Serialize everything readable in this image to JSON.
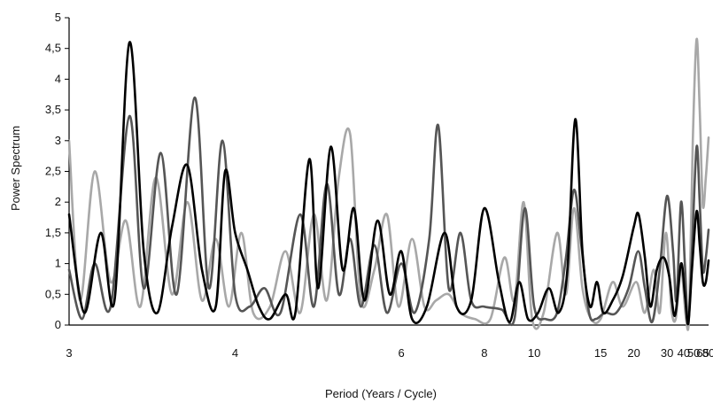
{
  "chart_data": {
    "type": "line",
    "title": "",
    "xlabel": "Period (Years / Cycle)",
    "ylabel": "Power Spectrum",
    "ylim": [
      0,
      5
    ],
    "xlim": [
      3,
      80
    ],
    "x_scale": "reciprocal",
    "yticks": [
      {
        "value": 0,
        "label": "0"
      },
      {
        "value": 0.5,
        "label": "0,5"
      },
      {
        "value": 1,
        "label": "1"
      },
      {
        "value": 1.5,
        "label": "1,5"
      },
      {
        "value": 2,
        "label": "2"
      },
      {
        "value": 2.5,
        "label": "2,5"
      },
      {
        "value": 3,
        "label": "3"
      },
      {
        "value": 3.5,
        "label": "3,5"
      },
      {
        "value": 4,
        "label": "4"
      },
      {
        "value": 4.5,
        "label": "4,5"
      },
      {
        "value": 5,
        "label": "5"
      }
    ],
    "xticks": [
      {
        "value": 3,
        "label": "3"
      },
      {
        "value": 4,
        "label": "4"
      },
      {
        "value": 6,
        "label": "6"
      },
      {
        "value": 8,
        "label": "8"
      },
      {
        "value": 10,
        "label": "10"
      },
      {
        "value": 15,
        "label": "15"
      },
      {
        "value": 20,
        "label": "20"
      },
      {
        "value": 30,
        "label": "30"
      },
      {
        "value": 40,
        "label": "40"
      },
      {
        "value": 50,
        "label": "50"
      },
      {
        "value": 65,
        "label": "65"
      },
      {
        "value": 80,
        "label": "80"
      }
    ],
    "grid": false,
    "legend": "none",
    "series": [
      {
        "color": "#000000",
        "points": [
          [
            3.0,
            1.8
          ],
          [
            3.07,
            0.2
          ],
          [
            3.15,
            1.5
          ],
          [
            3.22,
            0.4
          ],
          [
            3.3,
            4.6
          ],
          [
            3.38,
            1.2
          ],
          [
            3.46,
            0.2
          ],
          [
            3.55,
            1.6
          ],
          [
            3.65,
            2.6
          ],
          [
            3.75,
            0.9
          ],
          [
            3.85,
            0.3
          ],
          [
            3.92,
            2.5
          ],
          [
            4.0,
            1.5
          ],
          [
            4.1,
            0.9
          ],
          [
            4.2,
            0.3
          ],
          [
            4.3,
            0.1
          ],
          [
            4.45,
            0.5
          ],
          [
            4.55,
            0.2
          ],
          [
            4.7,
            2.7
          ],
          [
            4.8,
            0.6
          ],
          [
            4.95,
            2.9
          ],
          [
            5.1,
            0.9
          ],
          [
            5.25,
            1.9
          ],
          [
            5.4,
            0.4
          ],
          [
            5.6,
            1.7
          ],
          [
            5.8,
            0.5
          ],
          [
            6.0,
            1.2
          ],
          [
            6.2,
            0.1
          ],
          [
            6.5,
            0.3
          ],
          [
            6.9,
            1.5
          ],
          [
            7.2,
            0.3
          ],
          [
            7.6,
            0.4
          ],
          [
            8.0,
            1.9
          ],
          [
            8.5,
            0.7
          ],
          [
            8.9,
            0.05
          ],
          [
            9.3,
            0.7
          ],
          [
            9.7,
            0.1
          ],
          [
            10.2,
            0.2
          ],
          [
            10.8,
            0.6
          ],
          [
            11.4,
            0.2
          ],
          [
            12.0,
            0.9
          ],
          [
            12.6,
            3.35
          ],
          [
            13.2,
            1.2
          ],
          [
            13.9,
            0.3
          ],
          [
            14.6,
            0.7
          ],
          [
            15.3,
            0.2
          ],
          [
            16.5,
            0.4
          ],
          [
            18.0,
            0.8
          ],
          [
            20.0,
            1.6
          ],
          [
            21.0,
            1.8
          ],
          [
            22.5,
            1.1
          ],
          [
            24.0,
            0.3
          ],
          [
            26.0,
            0.9
          ],
          [
            28.5,
            1.1
          ],
          [
            31.0,
            0.8
          ],
          [
            34.0,
            0.15
          ],
          [
            38.0,
            1.0
          ],
          [
            41.0,
            0.5
          ],
          [
            44.0,
            0.02
          ],
          [
            48.0,
            0.9
          ],
          [
            54.0,
            1.85
          ],
          [
            59.0,
            1.3
          ],
          [
            65.0,
            0.7
          ],
          [
            72.0,
            0.7
          ],
          [
            80.0,
            1.05
          ]
        ]
      },
      {
        "color": "#555555",
        "points": [
          [
            3.0,
            0.9
          ],
          [
            3.06,
            0.1
          ],
          [
            3.12,
            1.0
          ],
          [
            3.2,
            0.3
          ],
          [
            3.3,
            3.4
          ],
          [
            3.38,
            0.6
          ],
          [
            3.48,
            2.8
          ],
          [
            3.58,
            0.5
          ],
          [
            3.7,
            3.7
          ],
          [
            3.8,
            0.6
          ],
          [
            3.9,
            3.0
          ],
          [
            4.0,
            0.5
          ],
          [
            4.12,
            0.3
          ],
          [
            4.25,
            0.6
          ],
          [
            4.4,
            0.2
          ],
          [
            4.6,
            1.8
          ],
          [
            4.75,
            0.3
          ],
          [
            4.9,
            2.3
          ],
          [
            5.05,
            0.5
          ],
          [
            5.2,
            1.4
          ],
          [
            5.35,
            0.3
          ],
          [
            5.55,
            1.3
          ],
          [
            5.75,
            0.2
          ],
          [
            6.0,
            1.0
          ],
          [
            6.25,
            0.2
          ],
          [
            6.55,
            1.4
          ],
          [
            6.75,
            3.25
          ],
          [
            7.0,
            0.6
          ],
          [
            7.3,
            1.5
          ],
          [
            7.6,
            0.4
          ],
          [
            8.0,
            0.3
          ],
          [
            8.6,
            0.25
          ],
          [
            9.1,
            0.1
          ],
          [
            9.55,
            1.9
          ],
          [
            10.0,
            0.3
          ],
          [
            10.6,
            0.1
          ],
          [
            11.3,
            0.2
          ],
          [
            11.9,
            1.1
          ],
          [
            12.5,
            2.2
          ],
          [
            13.1,
            1.3
          ],
          [
            13.8,
            0.2
          ],
          [
            14.5,
            0.1
          ],
          [
            15.5,
            0.2
          ],
          [
            17.0,
            0.2
          ],
          [
            19.0,
            0.6
          ],
          [
            20.9,
            1.2
          ],
          [
            22.5,
            0.6
          ],
          [
            24.5,
            0.05
          ],
          [
            27.0,
            0.9
          ],
          [
            30.0,
            2.1
          ],
          [
            33.0,
            1.2
          ],
          [
            35.0,
            0.4
          ],
          [
            38.0,
            2.0
          ],
          [
            41.0,
            1.0
          ],
          [
            44.0,
            0.02
          ],
          [
            48.0,
            1.2
          ],
          [
            54.0,
            2.9
          ],
          [
            59.0,
            2.0
          ],
          [
            65.0,
            0.9
          ],
          [
            72.0,
            1.1
          ],
          [
            80.0,
            1.55
          ]
        ]
      },
      {
        "color": "#a8a8a8",
        "points": [
          [
            3.0,
            3.0
          ],
          [
            3.05,
            0.4
          ],
          [
            3.12,
            2.5
          ],
          [
            3.2,
            0.7
          ],
          [
            3.28,
            1.7
          ],
          [
            3.36,
            0.3
          ],
          [
            3.45,
            2.4
          ],
          [
            3.55,
            0.5
          ],
          [
            3.65,
            2.0
          ],
          [
            3.75,
            0.4
          ],
          [
            3.85,
            1.4
          ],
          [
            3.95,
            0.3
          ],
          [
            4.05,
            1.5
          ],
          [
            4.15,
            0.2
          ],
          [
            4.3,
            0.3
          ],
          [
            4.45,
            1.2
          ],
          [
            4.6,
            0.2
          ],
          [
            4.75,
            1.8
          ],
          [
            4.9,
            0.4
          ],
          [
            5.05,
            2.4
          ],
          [
            5.2,
            3.1
          ],
          [
            5.35,
            0.4
          ],
          [
            5.55,
            0.9
          ],
          [
            5.75,
            1.8
          ],
          [
            5.95,
            0.3
          ],
          [
            6.2,
            1.4
          ],
          [
            6.45,
            0.3
          ],
          [
            6.7,
            0.4
          ],
          [
            7.0,
            0.5
          ],
          [
            7.3,
            0.2
          ],
          [
            7.7,
            0.1
          ],
          [
            8.2,
            0.1
          ],
          [
            8.7,
            1.1
          ],
          [
            9.1,
            0.4
          ],
          [
            9.5,
            2.0
          ],
          [
            9.9,
            0.1
          ],
          [
            10.5,
            0.2
          ],
          [
            11.3,
            1.5
          ],
          [
            11.9,
            0.5
          ],
          [
            12.5,
            1.9
          ],
          [
            13.2,
            0.6
          ],
          [
            14.0,
            0.1
          ],
          [
            15.0,
            0.1
          ],
          [
            16.5,
            0.7
          ],
          [
            18.0,
            0.3
          ],
          [
            20.5,
            0.7
          ],
          [
            22.5,
            0.2
          ],
          [
            25.0,
            0.9
          ],
          [
            27.0,
            0.2
          ],
          [
            29.5,
            1.5
          ],
          [
            32.0,
            0.3
          ],
          [
            34.5,
            0.1
          ],
          [
            38.0,
            0.9
          ],
          [
            42.0,
            0.1
          ],
          [
            45.0,
            0.2
          ],
          [
            49.0,
            3.0
          ],
          [
            54.0,
            4.65
          ],
          [
            59.0,
            3.5
          ],
          [
            65.0,
            1.95
          ],
          [
            72.0,
            2.4
          ],
          [
            80.0,
            3.05
          ]
        ]
      }
    ]
  }
}
